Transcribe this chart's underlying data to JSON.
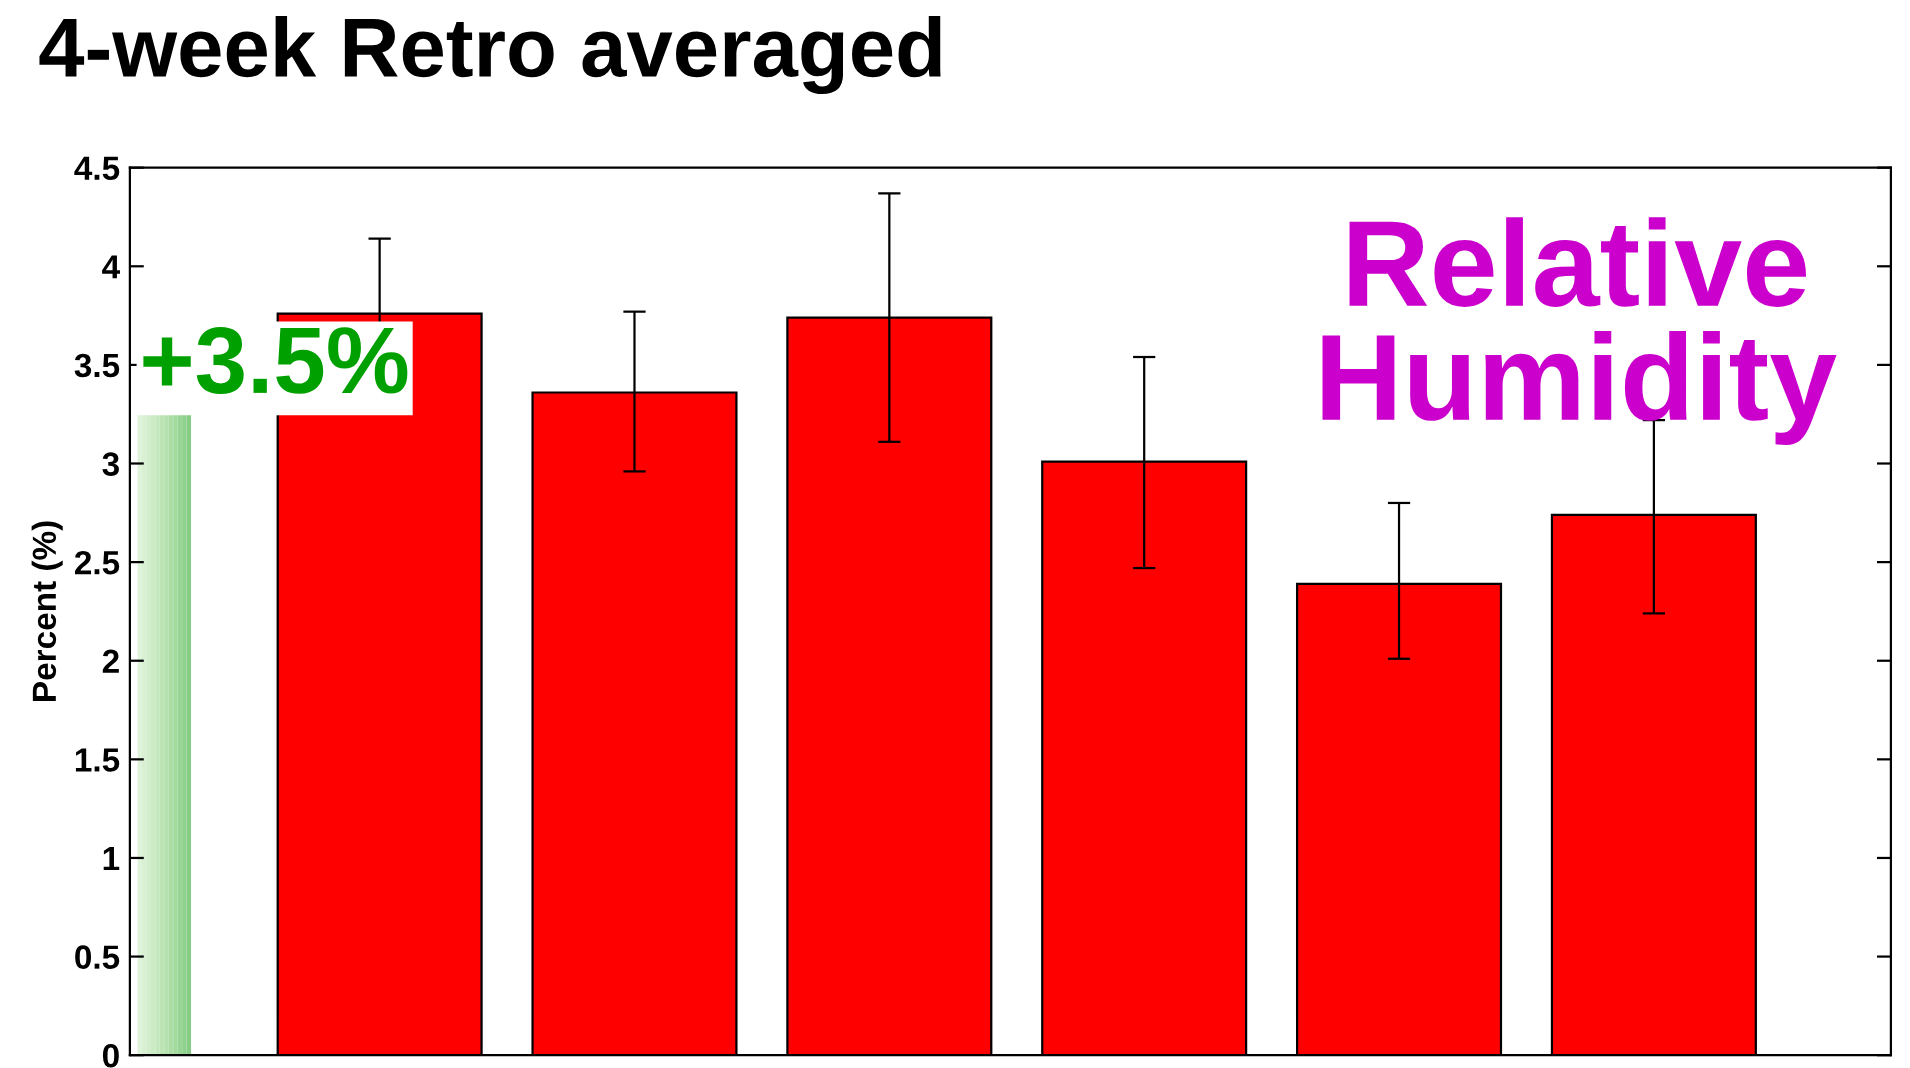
{
  "chart_data": {
    "type": "bar",
    "title": "4-week Retro averaged",
    "ylabel": "Percent (%)",
    "categories": [
      null,
      null,
      null,
      null,
      null,
      null
    ],
    "values": [
      3.76,
      3.36,
      3.74,
      3.01,
      2.39,
      2.74
    ],
    "errors": [
      [
        3.4,
        4.14
      ],
      [
        2.96,
        3.77
      ],
      [
        3.11,
        4.37
      ],
      [
        2.47,
        3.54
      ],
      [
        2.01,
        2.8
      ],
      [
        2.24,
        3.22
      ]
    ],
    "color": "#ff0000",
    "ylim": [
      0,
      4.5
    ],
    "yticks": [
      0,
      0.5,
      1,
      1.5,
      2,
      2.5,
      3,
      3.5,
      4,
      4.5
    ],
    "annotations": [
      "+3.5%",
      "Relative Humidity"
    ],
    "grid": false
  }
}
